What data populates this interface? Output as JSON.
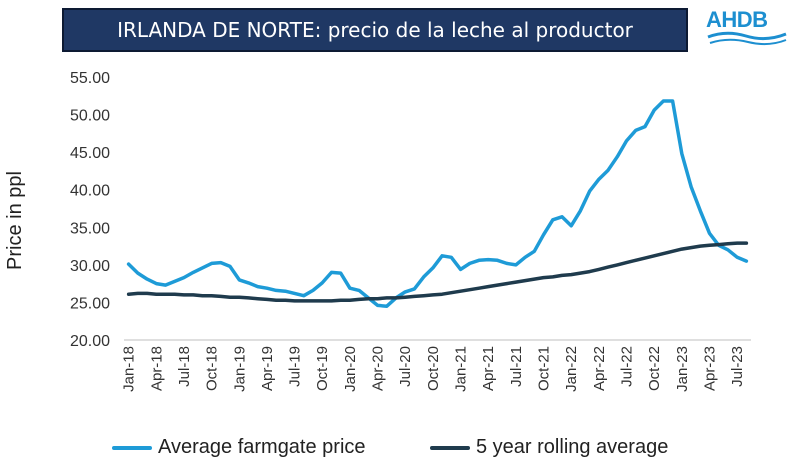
{
  "header": {
    "title": "IRLANDA DE NORTE: precio de la leche al productor",
    "logo_text": "AHDB"
  },
  "colors": {
    "title_bg": "#1f3864",
    "farmgate": "#1e9bd7",
    "rolling": "#1f3b4d",
    "logo": "#1d8fd0"
  },
  "chart_data": {
    "type": "line",
    "title": "IRLANDA DE NORTE: precio de la leche al productor",
    "ylabel": "Price in ppl",
    "xlabel": "",
    "ylim": [
      20,
      55
    ],
    "yticks": [
      "20.00",
      "25.00",
      "30.00",
      "35.00",
      "40.00",
      "45.00",
      "50.00",
      "55.00"
    ],
    "xtick_labels": [
      "Jan-18",
      "Apr-18",
      "Jul-18",
      "Oct-18",
      "Jan-19",
      "Apr-19",
      "Jul-19",
      "Oct-19",
      "Jan-20",
      "Apr-20",
      "Jul-20",
      "Oct-20",
      "Jan-21",
      "Apr-21",
      "Jul-21",
      "Oct-21",
      "Jan-22",
      "Apr-22",
      "Jul-22",
      "Oct-22",
      "Jan-23",
      "Apr-23",
      "Jul-23"
    ],
    "grid": false,
    "legend_position": "bottom",
    "x": [
      "Jan-18",
      "Feb-18",
      "Mar-18",
      "Apr-18",
      "May-18",
      "Jun-18",
      "Jul-18",
      "Aug-18",
      "Sep-18",
      "Oct-18",
      "Nov-18",
      "Dec-18",
      "Jan-19",
      "Feb-19",
      "Mar-19",
      "Apr-19",
      "May-19",
      "Jun-19",
      "Jul-19",
      "Aug-19",
      "Sep-19",
      "Oct-19",
      "Nov-19",
      "Dec-19",
      "Jan-20",
      "Feb-20",
      "Mar-20",
      "Apr-20",
      "May-20",
      "Jun-20",
      "Jul-20",
      "Aug-20",
      "Sep-20",
      "Oct-20",
      "Nov-20",
      "Dec-20",
      "Jan-21",
      "Feb-21",
      "Mar-21",
      "Apr-21",
      "May-21",
      "Jun-21",
      "Jul-21",
      "Aug-21",
      "Sep-21",
      "Oct-21",
      "Nov-21",
      "Dec-21",
      "Jan-22",
      "Feb-22",
      "Mar-22",
      "Apr-22",
      "May-22",
      "Jun-22",
      "Jul-22",
      "Aug-22",
      "Sep-22",
      "Oct-22",
      "Nov-22",
      "Dec-22",
      "Jan-23",
      "Feb-23",
      "Mar-23",
      "Apr-23",
      "May-23",
      "Jun-23",
      "Jul-23",
      "Aug-23"
    ],
    "series": [
      {
        "name": "Average farmgate price",
        "color": "#1e9bd7",
        "values": [
          30.1,
          28.9,
          28.1,
          27.5,
          27.3,
          27.8,
          28.3,
          29.0,
          29.6,
          30.2,
          30.3,
          29.8,
          28.0,
          27.6,
          27.1,
          26.9,
          26.6,
          26.5,
          26.2,
          25.9,
          26.6,
          27.6,
          29.0,
          28.9,
          26.9,
          26.6,
          25.6,
          24.6,
          24.5,
          25.6,
          26.4,
          26.8,
          28.4,
          29.6,
          31.2,
          31.0,
          29.4,
          30.2,
          30.6,
          30.7,
          30.6,
          30.2,
          30.0,
          31.0,
          31.8,
          34.0,
          36.0,
          36.4,
          35.2,
          37.2,
          39.8,
          41.4,
          42.6,
          44.4,
          46.5,
          47.9,
          48.4,
          50.6,
          51.8,
          51.8,
          44.8,
          40.4,
          37.2,
          34.2,
          32.6,
          32.0,
          31.0,
          30.5
        ]
      },
      {
        "name": "5 year rolling average",
        "color": "#1f3b4d",
        "values": [
          26.1,
          26.2,
          26.2,
          26.1,
          26.1,
          26.1,
          26.0,
          26.0,
          25.9,
          25.9,
          25.8,
          25.7,
          25.7,
          25.6,
          25.5,
          25.4,
          25.3,
          25.3,
          25.2,
          25.2,
          25.2,
          25.2,
          25.2,
          25.3,
          25.3,
          25.4,
          25.5,
          25.5,
          25.6,
          25.6,
          25.7,
          25.8,
          25.9,
          26.0,
          26.1,
          26.3,
          26.5,
          26.7,
          26.9,
          27.1,
          27.3,
          27.5,
          27.7,
          27.9,
          28.1,
          28.3,
          28.4,
          28.6,
          28.7,
          28.9,
          29.1,
          29.4,
          29.7,
          30.0,
          30.3,
          30.6,
          30.9,
          31.2,
          31.5,
          31.8,
          32.1,
          32.3,
          32.5,
          32.6,
          32.7,
          32.8,
          32.9,
          32.9
        ]
      }
    ]
  }
}
